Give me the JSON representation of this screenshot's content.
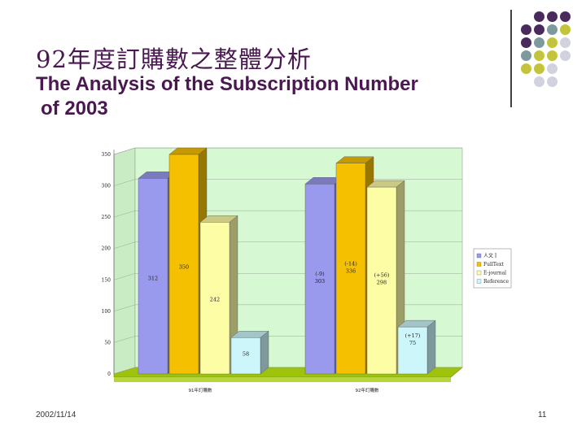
{
  "slide": {
    "title_zh": "92年度訂購數之整體分析",
    "title_en_line1": "The Analysis of the Subscription Number",
    "title_en_line2": "of 2003",
    "footer_date": "2002/11/14",
    "page_number": "11"
  },
  "decor": {
    "colors": [
      "#4a2a5c",
      "#7d9a9e",
      "#c4c43c",
      "#d2d2de"
    ],
    "grid": [
      [
        -1,
        0,
        0,
        0
      ],
      [
        0,
        0,
        1,
        2
      ],
      [
        0,
        1,
        2,
        3
      ],
      [
        1,
        2,
        2,
        3
      ],
      [
        2,
        2,
        3,
        -1
      ],
      [
        -1,
        3,
        3,
        -1
      ]
    ]
  },
  "chart_data": {
    "type": "bar",
    "style": "3d-clustered",
    "categories": [
      "91年訂購數",
      "92年訂購數"
    ],
    "ylim": [
      0,
      350
    ],
    "yticks": [
      0,
      50,
      100,
      150,
      200,
      250,
      300,
      350
    ],
    "grid": true,
    "legend_position": "right",
    "series": [
      {
        "name": "人文 I",
        "color": "#9999ee",
        "values": [
          312,
          303
        ],
        "labels": [
          "312",
          "303"
        ],
        "changes": [
          "",
          "(-9)"
        ]
      },
      {
        "name": "FullText",
        "color": "#f5c000",
        "values": [
          350,
          336
        ],
        "labels": [
          "350",
          "336"
        ],
        "changes": [
          "",
          "(-14)"
        ]
      },
      {
        "name": "E-journal",
        "color": "#fdfda6",
        "values": [
          242,
          298
        ],
        "labels": [
          "242",
          "298"
        ],
        "changes": [
          "",
          "(+56)"
        ]
      },
      {
        "name": "Reference",
        "color": "#ccf6fa",
        "values": [
          58,
          75
        ],
        "labels": [
          "58",
          "75"
        ],
        "changes": [
          "",
          "(+17)"
        ]
      }
    ]
  }
}
